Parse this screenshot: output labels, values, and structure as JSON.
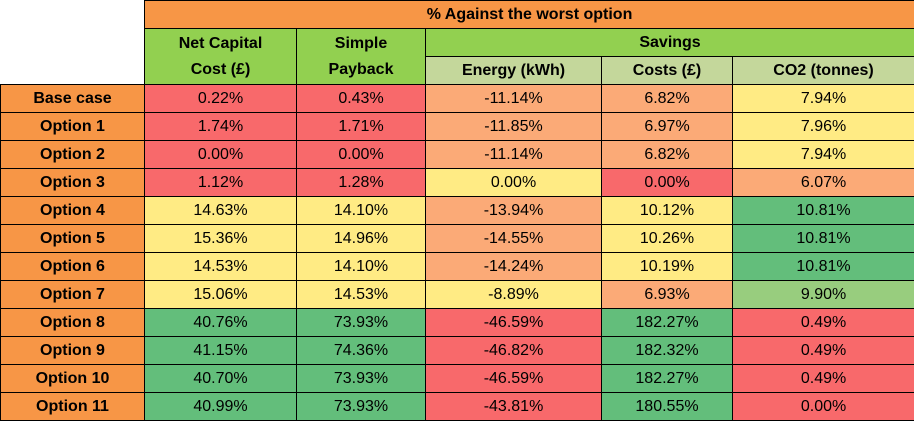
{
  "header": {
    "top": "% Against the worst option",
    "net_capital_line1": "Net Capital",
    "net_capital_line2": "Cost (£)",
    "simple_payback_line1": "Simple",
    "simple_payback_line2": "Payback",
    "savings": "Savings",
    "energy": "Energy (kWh)",
    "costs": "Costs (£)",
    "co2": "CO2 (tonnes)"
  },
  "colors": {
    "header_orange": "#f79646",
    "header_green": "#92d050",
    "header_sage": "#c4d79b",
    "red": "#f8696b",
    "orange": "#fbaa77",
    "yellow": "#ffeb84",
    "green": "#63be7b",
    "light_green": "#98cd7e"
  },
  "rows": [
    {
      "label": "Base case",
      "net_capital": "0.22%",
      "simple_payback": "0.43%",
      "energy": "-11.14%",
      "costs": "6.82%",
      "co2": "7.94%"
    },
    {
      "label": "Option 1",
      "net_capital": "1.74%",
      "simple_payback": "1.71%",
      "energy": "-11.85%",
      "costs": "6.97%",
      "co2": "7.96%"
    },
    {
      "label": "Option 2",
      "net_capital": "0.00%",
      "simple_payback": "0.00%",
      "energy": "-11.14%",
      "costs": "6.82%",
      "co2": "7.94%"
    },
    {
      "label": "Option 3",
      "net_capital": "1.12%",
      "simple_payback": "1.28%",
      "energy": "0.00%",
      "costs": "0.00%",
      "co2": "6.07%"
    },
    {
      "label": "Option 4",
      "net_capital": "14.63%",
      "simple_payback": "14.10%",
      "energy": "-13.94%",
      "costs": "10.12%",
      "co2": "10.81%"
    },
    {
      "label": "Option 5",
      "net_capital": "15.36%",
      "simple_payback": "14.96%",
      "energy": "-14.55%",
      "costs": "10.26%",
      "co2": "10.81%"
    },
    {
      "label": "Option 6",
      "net_capital": "14.53%",
      "simple_payback": "14.10%",
      "energy": "-14.24%",
      "costs": "10.19%",
      "co2": "10.81%"
    },
    {
      "label": "Option 7",
      "net_capital": "15.06%",
      "simple_payback": "14.53%",
      "energy": "-8.89%",
      "costs": "6.93%",
      "co2": "9.90%"
    },
    {
      "label": "Option 8",
      "net_capital": "40.76%",
      "simple_payback": "73.93%",
      "energy": "-46.59%",
      "costs": "182.27%",
      "co2": "0.49%"
    },
    {
      "label": "Option 9",
      "net_capital": "41.15%",
      "simple_payback": "74.36%",
      "energy": "-46.82%",
      "costs": "182.32%",
      "co2": "0.49%"
    },
    {
      "label": "Option 10",
      "net_capital": "40.70%",
      "simple_payback": "73.93%",
      "energy": "-46.59%",
      "costs": "182.27%",
      "co2": "0.49%"
    },
    {
      "label": "Option 11",
      "net_capital": "40.99%",
      "simple_payback": "73.93%",
      "energy": "-43.81%",
      "costs": "180.55%",
      "co2": "0.00%"
    }
  ],
  "cell_colors": [
    [
      "#f8696b",
      "#f8696b",
      "#fbaa77",
      "#fbaa77",
      "#ffeb84"
    ],
    [
      "#f8696b",
      "#f8696b",
      "#fbaa77",
      "#fbaa77",
      "#ffeb84"
    ],
    [
      "#f8696b",
      "#f8696b",
      "#fbaa77",
      "#fbaa77",
      "#ffeb84"
    ],
    [
      "#f8696b",
      "#f8696b",
      "#ffeb84",
      "#f8696b",
      "#fbaa77"
    ],
    [
      "#ffeb84",
      "#ffeb84",
      "#fbaa77",
      "#ffeb84",
      "#63be7b"
    ],
    [
      "#ffeb84",
      "#ffeb84",
      "#fbaa77",
      "#ffeb84",
      "#63be7b"
    ],
    [
      "#ffeb84",
      "#ffeb84",
      "#fbaa77",
      "#ffeb84",
      "#63be7b"
    ],
    [
      "#ffeb84",
      "#ffeb84",
      "#ffeb84",
      "#fbaa77",
      "#98cd7e"
    ],
    [
      "#63be7b",
      "#63be7b",
      "#f8696b",
      "#63be7b",
      "#f8696b"
    ],
    [
      "#63be7b",
      "#63be7b",
      "#f8696b",
      "#63be7b",
      "#f8696b"
    ],
    [
      "#63be7b",
      "#63be7b",
      "#f8696b",
      "#63be7b",
      "#f8696b"
    ],
    [
      "#63be7b",
      "#63be7b",
      "#f8696b",
      "#63be7b",
      "#f8696b"
    ]
  ]
}
